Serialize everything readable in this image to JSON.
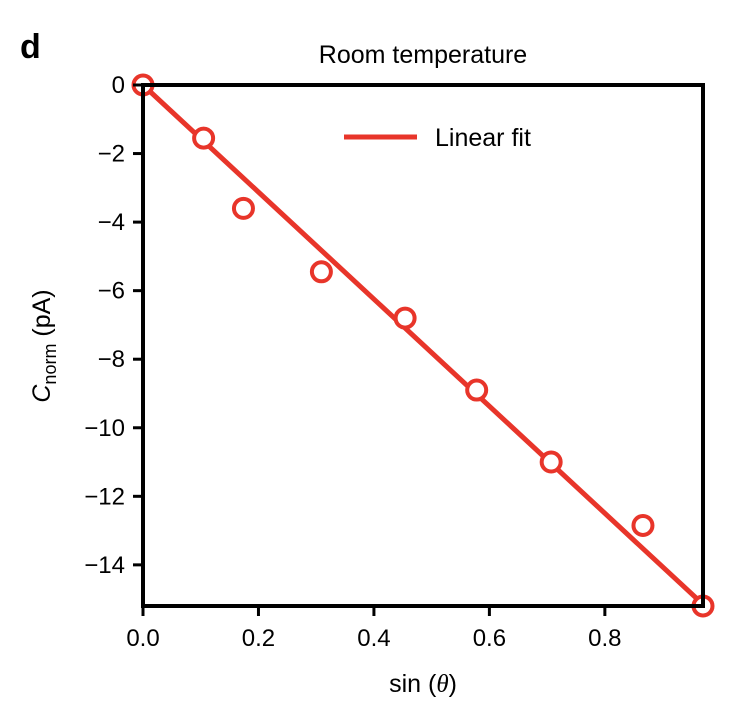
{
  "panel_label": "d",
  "chart_data": {
    "type": "scatter",
    "title": "Room temperature",
    "xlabel": {
      "prefix": "sin (",
      "symbol": "θ",
      "suffix": ")"
    },
    "ylabel": {
      "main": "C",
      "subscript": "norm",
      "unit": " (pA)"
    },
    "xlim": [
      0.0,
      0.97
    ],
    "ylim": [
      -15.2,
      0
    ],
    "x_ticks": [
      0.0,
      0.2,
      0.4,
      0.6,
      0.8
    ],
    "x_tick_labels": [
      "0.0",
      "0.2",
      "0.4",
      "0.6",
      "0.8"
    ],
    "y_ticks": [
      0,
      -2,
      -4,
      -6,
      -8,
      -10,
      -12,
      -14
    ],
    "y_tick_labels": [
      "0",
      "−2",
      "−4",
      "−6",
      "−8",
      "−10",
      "−12",
      "−14"
    ],
    "grid": false,
    "legend_position": "top-right",
    "series": [
      {
        "kind": "points",
        "marker": "open-circle",
        "color": "#e8352a",
        "x": [
          0.0,
          0.105,
          0.174,
          0.309,
          0.454,
          0.578,
          0.707,
          0.866,
          0.97
        ],
        "y": [
          0.0,
          -1.55,
          -3.6,
          -5.45,
          -6.8,
          -8.9,
          -11.0,
          -12.85,
          -15.2
        ]
      },
      {
        "name": "Linear fit",
        "kind": "line",
        "color": "#e8352a",
        "x": [
          0.0,
          0.97
        ],
        "y": [
          0.0,
          -15.15
        ]
      }
    ]
  }
}
